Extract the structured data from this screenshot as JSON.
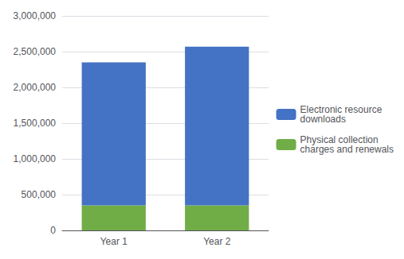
{
  "chart_data": {
    "type": "bar",
    "stacked": true,
    "categories": [
      "Year 1",
      "Year 2"
    ],
    "series": [
      {
        "name": "Physical collection\ncharges and renewals",
        "color": "#70AD47",
        "values": [
          350000,
          350000
        ]
      },
      {
        "name": "Electronic resource\ndownloads",
        "color": "#4472C4",
        "values": [
          2000000,
          2220000
        ]
      }
    ],
    "ylim": [
      0,
      3000000
    ],
    "yticks": [
      0,
      {
        "value": 500000,
        "label": "500,000"
      },
      {
        "value": 1000000,
        "label": "1,000,000"
      },
      {
        "value": 1500000,
        "label": "1,500,000"
      },
      {
        "value": 2000000,
        "label": "2,000,000"
      },
      {
        "value": 2500000,
        "label": "2,500,000"
      },
      {
        "value": 3000000,
        "label": "3,000,000"
      }
    ],
    "grid": true,
    "legend": "right"
  }
}
